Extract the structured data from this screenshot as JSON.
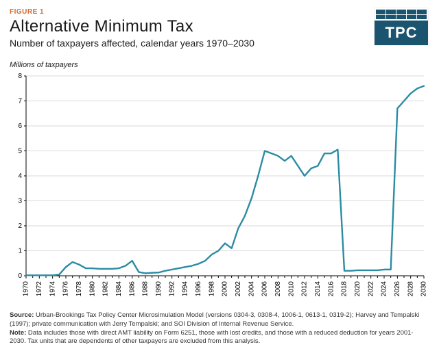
{
  "header": {
    "figure_label": "FIGURE 1",
    "figure_label_color": "#d56b2c",
    "title": "Alternative Minimum Tax",
    "subtitle": "Number of taxpayers affected, calendar years 1970–2030",
    "logo_text": "TPC",
    "logo_bg": "#1a546f"
  },
  "chart": {
    "type": "line",
    "yaxis_title": "Millions of taxpayers",
    "line_color": "#2b8ca3",
    "line_width": 2.4,
    "axis_color": "#000000",
    "tick_color": "#000000",
    "grid_color": "#d9d9d9",
    "background_color": "#ffffff",
    "tick_font_size": 10,
    "ylim": [
      0,
      8
    ],
    "ytick_step": 1,
    "xlim": [
      1970,
      2030
    ],
    "xtick_step": 2,
    "xtick_rotate": -90,
    "x": [
      1970,
      1971,
      1972,
      1973,
      1974,
      1975,
      1976,
      1977,
      1978,
      1979,
      1980,
      1981,
      1982,
      1983,
      1984,
      1985,
      1986,
      1987,
      1988,
      1989,
      1990,
      1991,
      1992,
      1993,
      1994,
      1995,
      1996,
      1997,
      1998,
      1999,
      2000,
      2001,
      2002,
      2003,
      2004,
      2005,
      2006,
      2007,
      2008,
      2009,
      2010,
      2011,
      2012,
      2013,
      2014,
      2015,
      2016,
      2017,
      2018,
      2019,
      2020,
      2021,
      2022,
      2023,
      2024,
      2025,
      2026,
      2027,
      2028,
      2029,
      2030
    ],
    "y": [
      0.02,
      0.02,
      0.02,
      0.02,
      0.02,
      0.05,
      0.35,
      0.55,
      0.45,
      0.3,
      0.3,
      0.28,
      0.28,
      0.28,
      0.3,
      0.4,
      0.6,
      0.15,
      0.1,
      0.12,
      0.13,
      0.2,
      0.25,
      0.3,
      0.35,
      0.4,
      0.48,
      0.6,
      0.85,
      1.0,
      1.3,
      1.1,
      1.9,
      2.4,
      3.1,
      4.0,
      5.0,
      4.9,
      4.8,
      4.6,
      4.8,
      4.4,
      4.0,
      4.3,
      4.4,
      4.9,
      4.9,
      5.05,
      0.2,
      0.2,
      0.22,
      0.22,
      0.22,
      0.22,
      0.25,
      0.25,
      6.7,
      7.0,
      7.3,
      7.5,
      7.6
    ]
  },
  "footnotes": {
    "source_label": "Source:",
    "source_text": " Urban-Brookings Tax Policy Center Microsimulation Model (versions 0304-3, 0308-4, 1006-1, 0613-1, 0319-2); Harvey and Tempalski (1997); private communication with Jerry Tempalski; and SOI Division of Internal Revenue Service.",
    "note_label": "Note:",
    "note_text": " Data includes those with direct AMT liability on Form 6251, those with lost credits, and those with a reduced deduction for years 2001-2030.  Tax units that are dependents of other taxpayers are excluded from this analysis."
  }
}
